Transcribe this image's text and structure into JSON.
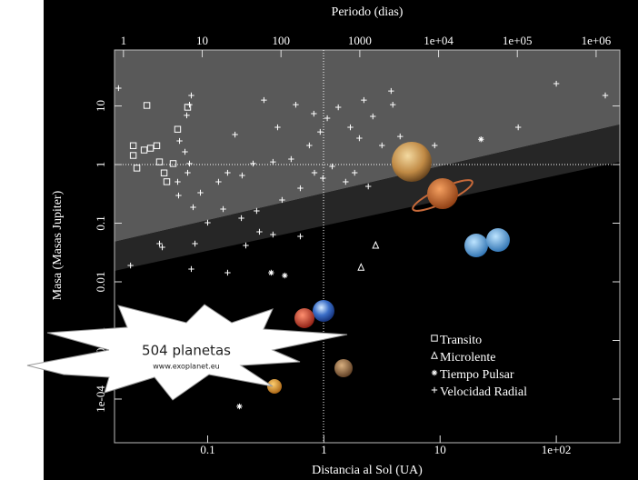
{
  "chart_data": {
    "type": "scatter",
    "xlabel": "Distancia al Sol (UA)",
    "ylabel": "Masa (Masas Jupiter)",
    "x2label": "Periodo (dias)",
    "xscale": "log",
    "yscale": "log",
    "x2scale": "log",
    "xlim": [
      0.0158,
      352
    ],
    "ylim": [
      1.8e-05,
      90
    ],
    "x2lim": [
      0.77,
      2000000
    ],
    "xticks": [
      0.1,
      1,
      10,
      {
        "value": 100,
        "label": "1e+02"
      }
    ],
    "yticks": [
      {
        "value": 0.0001,
        "label": "1e-04"
      },
      0.001,
      0.01,
      0.1,
      1,
      10
    ],
    "x2ticks": [
      1,
      10,
      100,
      1000,
      {
        "value": 10000,
        "label": "1e+04"
      },
      {
        "value": 100000,
        "label": "1e+05"
      },
      {
        "value": 1000000,
        "label": "1e+06"
      }
    ],
    "annotations": [
      "504 planetas",
      "www.exoplanet.eu"
    ],
    "series": [
      {
        "name": "Transito",
        "marker": "square",
        "color": "#ffffff",
        "x": [
          0.03,
          0.0552,
          0.0673,
          0.0229,
          0.0229,
          0.0284,
          0.0322,
          0.0365,
          0.0246,
          0.0385,
          0.0422,
          0.0445,
          0.0505
        ],
        "values": [
          10.2,
          4.0,
          9.5,
          2.1,
          1.43,
          1.77,
          1.9,
          2.1,
          0.87,
          1.11,
          0.72,
          0.51,
          1.04
        ]
      },
      {
        "name": "Microlente",
        "marker": "triangle",
        "color": "#ffffff",
        "x": [
          2.79,
          2.09
        ],
        "values": [
          0.042,
          0.0177
        ]
      },
      {
        "name": "Tiempo Pulsar",
        "marker": "asterisk",
        "color": "#ffffff",
        "x": [
          0.352,
          0.461,
          0.1876,
          22.5
        ],
        "values": [
          0.0143,
          0.0128,
          7.5e-05,
          2.7
        ]
      },
      {
        "name": "Velocidad Radial",
        "marker": "plus",
        "color": "#ffffff",
        "x": [
          0.0171,
          0.0723,
          0.0698,
          0.0661,
          0.0573,
          0.0638,
          0.0698,
          0.0673,
          0.0562,
          0.075,
          0.0866,
          0.1,
          0.0778,
          0.0385,
          0.0407,
          0.0217,
          0.0552,
          0.124,
          0.1485,
          0.198,
          0.246,
          0.365,
          0.523,
          0.75,
          0.93,
          1.07,
          1.33,
          1.69,
          2.02,
          2.21,
          2.64,
          3.16,
          3.79,
          3.92,
          4.53,
          6.49,
          8.98,
          0.305,
          0.4,
          0.573,
          0.82,
          0.172,
          0.195,
          0.279,
          0.136,
          0.437,
          0.627,
          0.98,
          1.18,
          1.54,
          1.84,
          2.41,
          47,
          100,
          264,
          0.264,
          0.365,
          0.213,
          0.1485,
          0.0723,
          0.627,
          0.83
        ],
        "values": [
          20.1,
          15.1,
          10.5,
          6.9,
          2.53,
          1.65,
          1.04,
          0.725,
          0.297,
          0.187,
          0.331,
          0.102,
          0.0448,
          0.0448,
          0.0388,
          0.019,
          0.508,
          0.508,
          0.725,
          0.652,
          1.04,
          1.11,
          1.24,
          2.12,
          3.61,
          6.18,
          9.48,
          4.32,
          2.82,
          12.6,
          6.63,
          2.12,
          18.0,
          10.5,
          3.02,
          1.77,
          2.12,
          12.6,
          4.32,
          10.5,
          7.38,
          3.25,
          0.122,
          0.0713,
          0.174,
          0.249,
          0.0596,
          0.585,
          0.931,
          0.508,
          0.725,
          0.425,
          4.32,
          24,
          15.1,
          0.162,
          0.064,
          0.0417,
          0.0143,
          0.0165,
          0.395,
          0.725
        ]
      }
    ]
  }
}
